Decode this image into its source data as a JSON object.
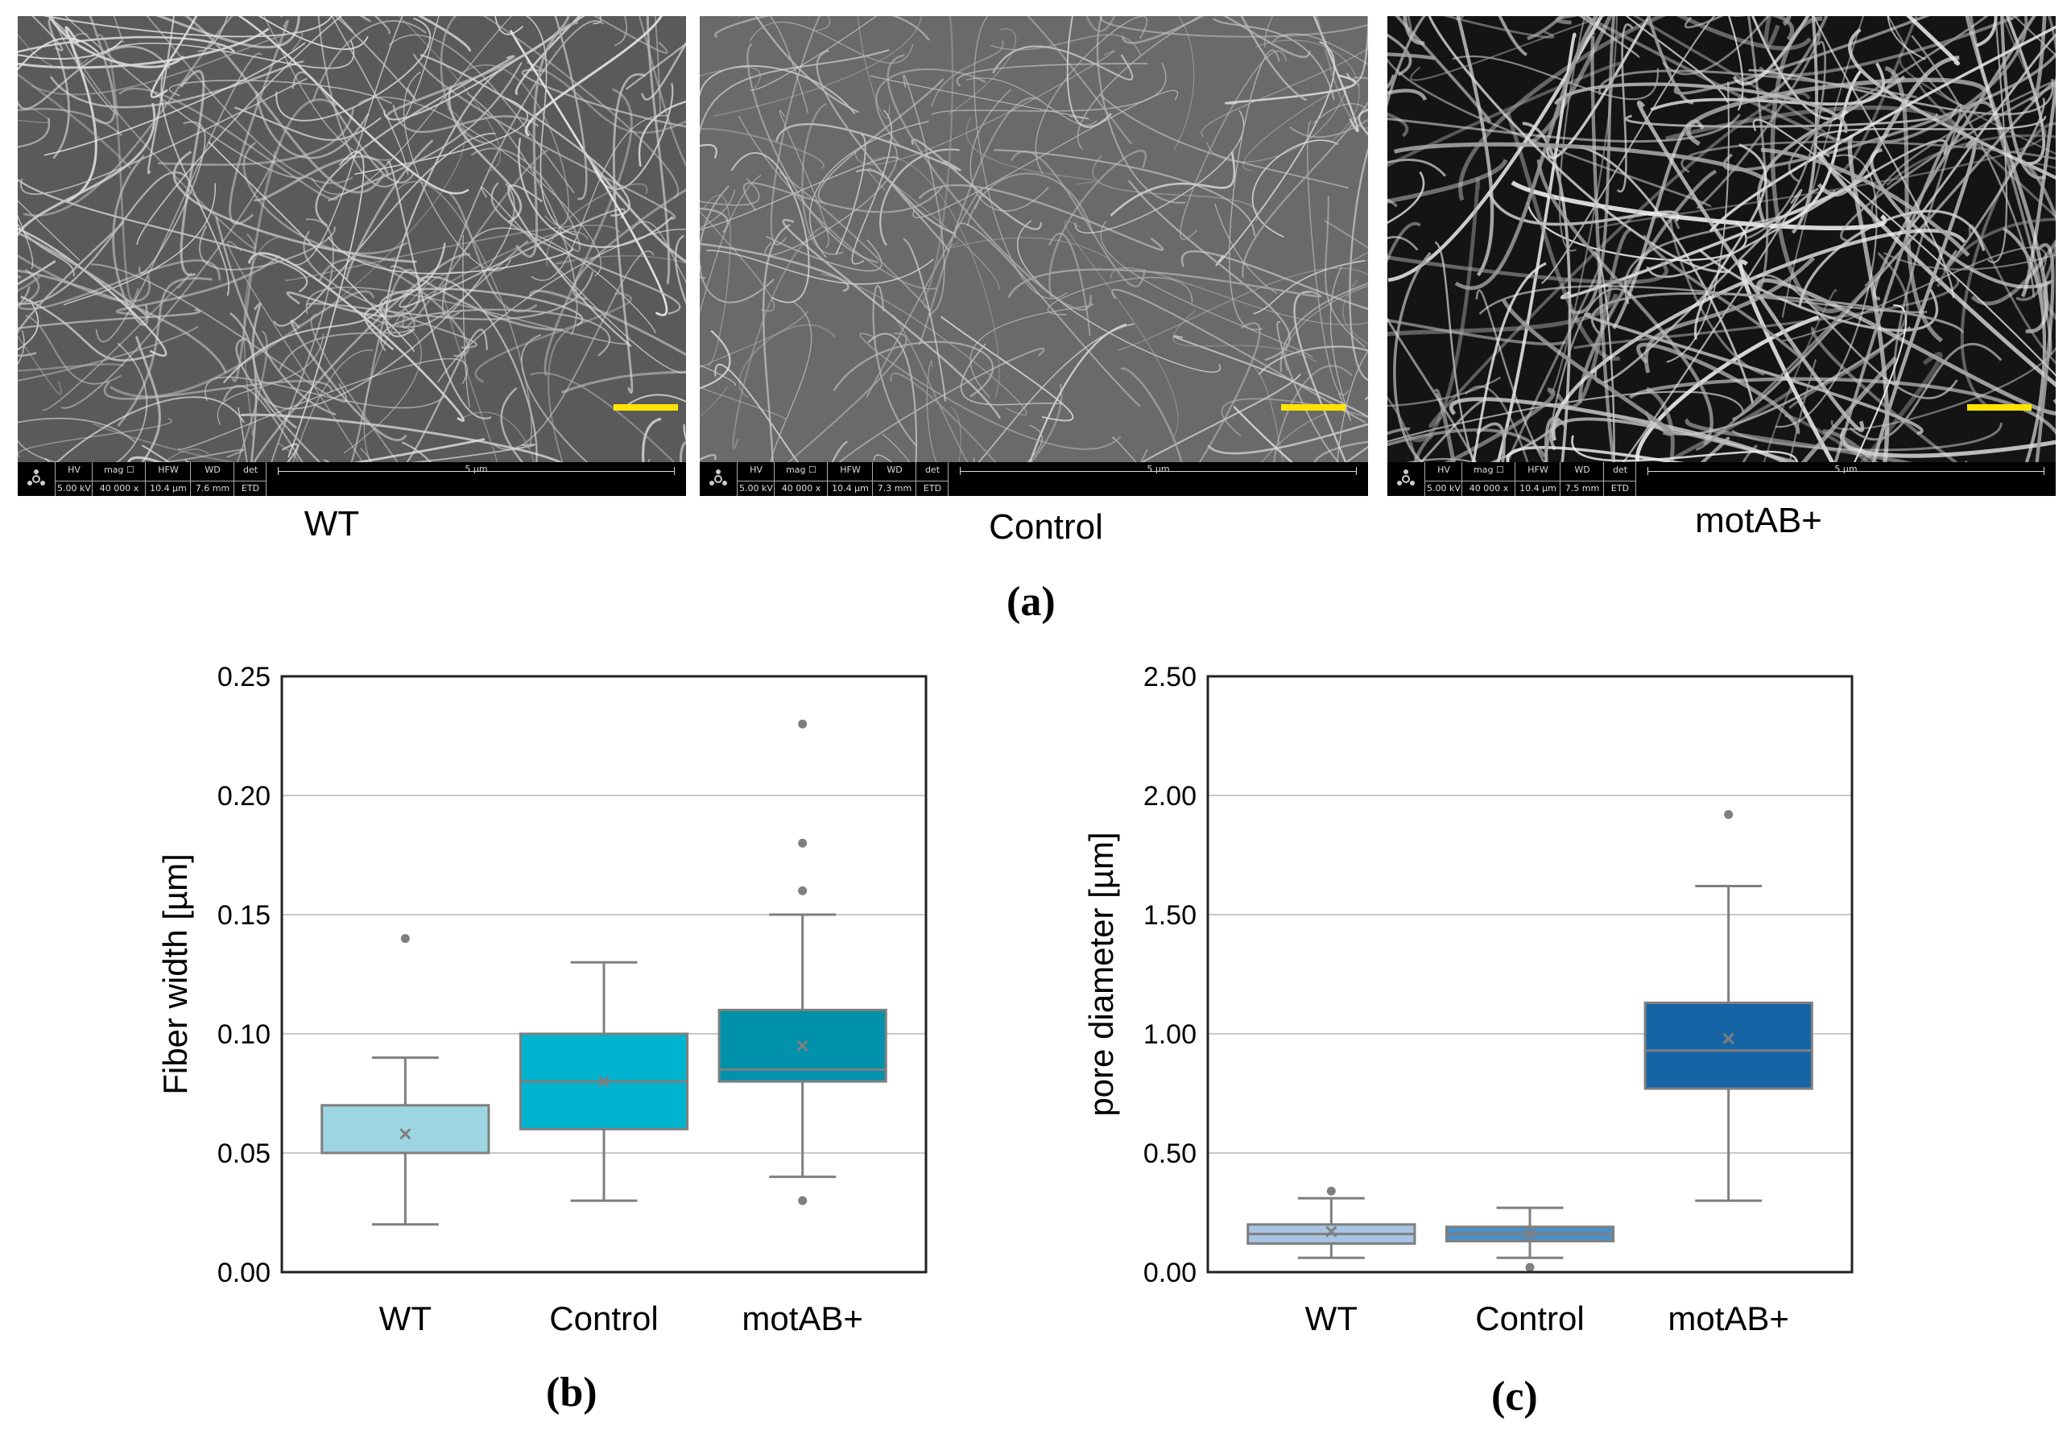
{
  "panel_a": {
    "label": "(a)",
    "images": [
      {
        "caption": "WT",
        "info": {
          "hv_label": "HV",
          "hv": "5.00 kV",
          "mag_label": "mag ☐",
          "mag": "40 000 x",
          "hfw_label": "HFW",
          "hfw": "10.4 µm",
          "wd_label": "WD",
          "wd": "7.6 mm",
          "det_label": "det",
          "det": "ETD",
          "scale": "5 µm"
        }
      },
      {
        "caption": "Control",
        "info": {
          "hv_label": "HV",
          "hv": "5.00 kV",
          "mag_label": "mag ☐",
          "mag": "40 000 x",
          "hfw_label": "HFW",
          "hfw": "10.4 µm",
          "wd_label": "WD",
          "wd": "7.3 mm",
          "det_label": "det",
          "det": "ETD",
          "scale": "5 µm"
        }
      },
      {
        "caption": "motAB+",
        "info": {
          "hv_label": "HV",
          "hv": "5.00 kV",
          "mag_label": "mag ☐",
          "mag": "40 000 x",
          "hfw_label": "HFW",
          "hfw": "10.4 µm",
          "wd_label": "WD",
          "wd": "7.5 mm",
          "det_label": "det",
          "det": "ETD",
          "scale": "5 µm"
        }
      }
    ],
    "scalebar_color": "#ffe400"
  },
  "chart_data": [
    {
      "type": "box",
      "panel_label": "(b)",
      "ylabel": "Fiber width [µm]",
      "ylim": [
        0,
        0.25
      ],
      "yticks": [
        "0.00",
        "0.05",
        "0.10",
        "0.15",
        "0.20",
        "0.25"
      ],
      "grid": true,
      "categories": [
        "WT",
        "Control",
        "motAB+"
      ],
      "boxes": [
        {
          "name": "WT",
          "color": "#9dd6e2",
          "whisker_low": 0.02,
          "q1": 0.05,
          "median": 0.05,
          "q3": 0.07,
          "whisker_high": 0.09,
          "mean": 0.058,
          "outliers": [
            0.14
          ]
        },
        {
          "name": "Control",
          "color": "#00b4d0",
          "whisker_low": 0.03,
          "q1": 0.06,
          "median": 0.08,
          "q3": 0.1,
          "whisker_high": 0.13,
          "mean": 0.08,
          "outliers": []
        },
        {
          "name": "motAB+",
          "color": "#0092aa",
          "whisker_low": 0.04,
          "q1": 0.08,
          "median": 0.085,
          "q3": 0.11,
          "whisker_high": 0.15,
          "mean": 0.095,
          "outliers": [
            0.03,
            0.16,
            0.18,
            0.23
          ]
        }
      ]
    },
    {
      "type": "box",
      "panel_label": "(c)",
      "ylabel": "pore diameter [µm]",
      "ylim": [
        0,
        2.5
      ],
      "yticks": [
        "0.00",
        "0.50",
        "1.00",
        "1.50",
        "2.00",
        "2.50"
      ],
      "grid": true,
      "categories": [
        "WT",
        "Control",
        "motAB+"
      ],
      "boxes": [
        {
          "name": "WT",
          "color": "#a9c4e4",
          "whisker_low": 0.06,
          "q1": 0.12,
          "median": 0.16,
          "q3": 0.2,
          "whisker_high": 0.31,
          "mean": 0.17,
          "outliers": [
            0.34
          ]
        },
        {
          "name": "Control",
          "color": "#4a90c8",
          "whisker_low": 0.06,
          "q1": 0.13,
          "median": 0.16,
          "q3": 0.19,
          "whisker_high": 0.27,
          "mean": 0.16,
          "outliers": [
            0.02
          ]
        },
        {
          "name": "motAB+",
          "color": "#1565a6",
          "whisker_low": 0.3,
          "q1": 0.77,
          "median": 0.93,
          "q3": 1.13,
          "whisker_high": 1.62,
          "mean": 0.98,
          "outliers": [
            1.92
          ]
        }
      ]
    }
  ]
}
